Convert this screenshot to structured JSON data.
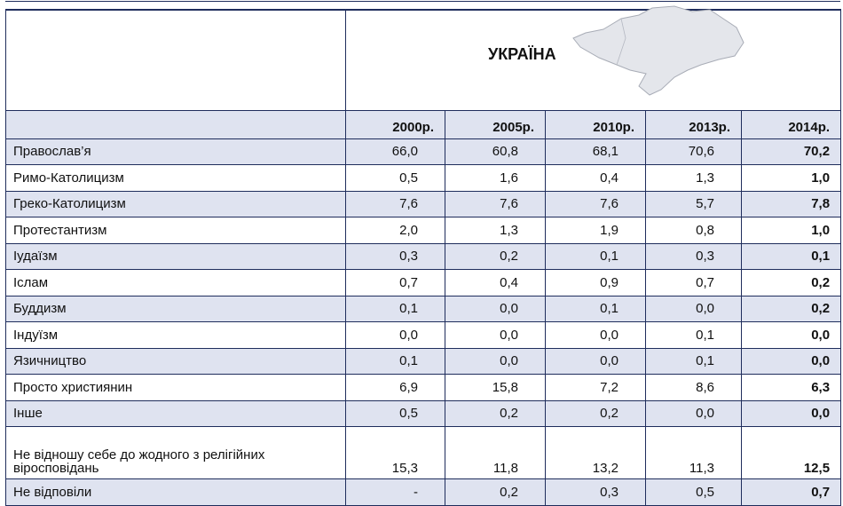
{
  "header": {
    "title": "УКРАЇНА"
  },
  "table": {
    "columns": [
      "2000р.",
      "2005р.",
      "2010р.",
      "2013р.",
      "2014р."
    ],
    "rows": [
      [
        "Православ’я",
        "66,0",
        "60,8",
        "68,1",
        "70,6",
        "70,2"
      ],
      [
        "Римо-Католицизм",
        "0,5",
        "1,6",
        "0,4",
        "1,3",
        "1,0"
      ],
      [
        "Греко-Католицизм",
        "7,6",
        "7,6",
        "7,6",
        "5,7",
        "7,8"
      ],
      [
        "Протестантизм",
        "2,0",
        "1,3",
        "1,9",
        "0,8",
        "1,0"
      ],
      [
        "Іудаїзм",
        "0,3",
        "0,2",
        "0,1",
        "0,3",
        "0,1"
      ],
      [
        "Іслам",
        "0,7",
        "0,4",
        "0,9",
        "0,7",
        "0,2"
      ],
      [
        "Буддизм",
        "0,1",
        "0,0",
        "0,1",
        "0,0",
        "0,2"
      ],
      [
        "Індуїзм",
        "0,0",
        "0,0",
        "0,0",
        "0,1",
        "0,0"
      ],
      [
        "Язичництво",
        "0,1",
        "0,0",
        "0,0",
        "0,1",
        "0,0"
      ],
      [
        "Просто християнин",
        "6,9",
        "15,8",
        "7,2",
        "8,6",
        "6,3"
      ],
      [
        "Інше",
        "0,5",
        "0,2",
        "0,2",
        "0,0",
        "0,0"
      ],
      [
        "Не відношу себе до жодного з релігійних віросповідань",
        "15,3",
        "11,8",
        "13,2",
        "11,3",
        "12,5"
      ],
      [
        "Не відповіли",
        "-",
        "0,2",
        "0,3",
        "0,5",
        "0,7"
      ]
    ]
  }
}
